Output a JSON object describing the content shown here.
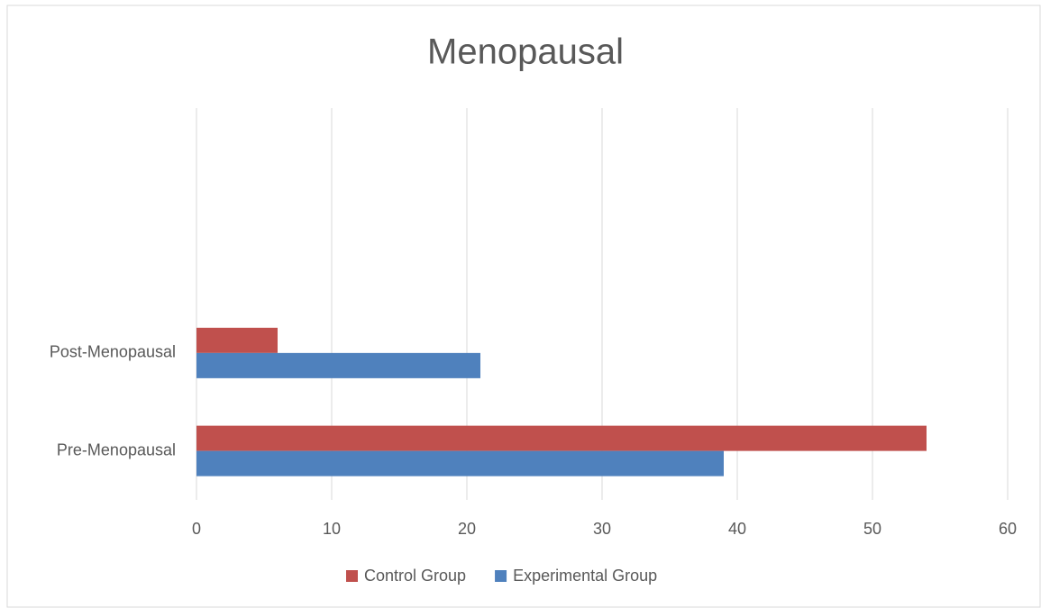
{
  "chart_data": {
    "type": "bar",
    "orientation": "horizontal",
    "title": "Menopausal",
    "categories": [
      "Pre-Menopausal",
      "Post-Menopausal",
      null,
      null
    ],
    "series": [
      {
        "name": "Control Group",
        "color": "#c0504d",
        "values": [
          54,
          6,
          null,
          null
        ]
      },
      {
        "name": "Experimental Group",
        "color": "#4f81bd",
        "values": [
          39,
          21,
          null,
          null
        ]
      }
    ],
    "xlim": [
      0,
      60
    ],
    "xticks": [
      0,
      10,
      20,
      30,
      40,
      50,
      60
    ],
    "grid": true,
    "legend": "bottom"
  }
}
